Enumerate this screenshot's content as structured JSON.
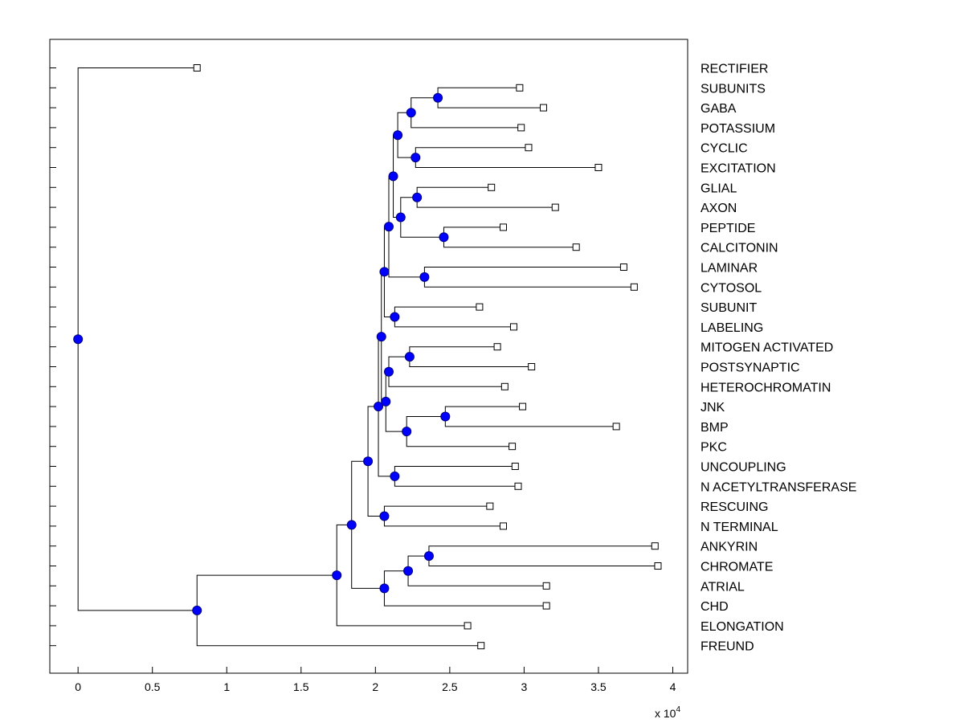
{
  "chart_data": {
    "type": "dendrogram",
    "title": "",
    "xlabel": "",
    "ylabel": "",
    "x_scale_label": "x 10",
    "x_scale_exponent": "4",
    "xlim": [
      -0.19,
      4.1
    ],
    "x_ticks": [
      0,
      0.5,
      1,
      1.5,
      2,
      2.5,
      3,
      3.5,
      4
    ],
    "x_tick_labels": [
      "0",
      "0.5",
      "1",
      "1.5",
      "2",
      "2.5",
      "3",
      "3.5",
      "4"
    ],
    "leaves": [
      {
        "label": "RECTIFIER",
        "x": 0.8
      },
      {
        "label": "SUBUNITS",
        "x": 2.97
      },
      {
        "label": "GABA",
        "x": 3.13
      },
      {
        "label": "POTASSIUM",
        "x": 2.98
      },
      {
        "label": "CYCLIC",
        "x": 3.03
      },
      {
        "label": "EXCITATION",
        "x": 3.5
      },
      {
        "label": "GLIAL",
        "x": 2.78
      },
      {
        "label": "AXON",
        "x": 3.21
      },
      {
        "label": "PEPTIDE",
        "x": 2.86
      },
      {
        "label": "CALCITONIN",
        "x": 3.35
      },
      {
        "label": "LAMINAR",
        "x": 3.67
      },
      {
        "label": "CYTOSOL",
        "x": 3.74
      },
      {
        "label": "SUBUNIT",
        "x": 2.7
      },
      {
        "label": "LABELING",
        "x": 2.93
      },
      {
        "label": "MITOGEN ACTIVATED",
        "x": 2.82
      },
      {
        "label": "POSTSYNAPTIC",
        "x": 3.05
      },
      {
        "label": "HETEROCHROMATIN",
        "x": 2.87
      },
      {
        "label": "JNK",
        "x": 2.99
      },
      {
        "label": "BMP",
        "x": 3.62
      },
      {
        "label": "PKC",
        "x": 2.92
      },
      {
        "label": "UNCOUPLING",
        "x": 2.94
      },
      {
        "label": "N ACETYLTRANSFERASE",
        "x": 2.96
      },
      {
        "label": "RESCUING",
        "x": 2.77
      },
      {
        "label": "N TERMINAL",
        "x": 2.86
      },
      {
        "label": "ANKYRIN",
        "x": 3.88
      },
      {
        "label": "CHROMATE",
        "x": 3.9
      },
      {
        "label": "ATRIAL",
        "x": 3.15
      },
      {
        "label": "CHD",
        "x": 3.15
      },
      {
        "label": "ELONGATION",
        "x": 2.62
      },
      {
        "label": "FREUND",
        "x": 2.71
      }
    ],
    "nodes": [
      {
        "id": "n1",
        "x": 2.42,
        "children": [
          1,
          2
        ]
      },
      {
        "id": "n2",
        "x": 2.24,
        "children": [
          "n1",
          3
        ]
      },
      {
        "id": "n3",
        "x": 2.27,
        "children": [
          4,
          5
        ]
      },
      {
        "id": "n4",
        "x": 2.15,
        "children": [
          "n2",
          "n3"
        ]
      },
      {
        "id": "n5",
        "x": 2.28,
        "children": [
          6,
          7
        ]
      },
      {
        "id": "n6",
        "x": 2.46,
        "children": [
          8,
          9
        ]
      },
      {
        "id": "n7",
        "x": 2.17,
        "children": [
          "n5",
          "n6"
        ]
      },
      {
        "id": "n8",
        "x": 2.12,
        "children": [
          "n4",
          "n7"
        ]
      },
      {
        "id": "n9",
        "x": 2.33,
        "children": [
          10,
          11
        ]
      },
      {
        "id": "n10",
        "x": 2.09,
        "children": [
          "n8",
          "n9"
        ]
      },
      {
        "id": "n11",
        "x": 2.13,
        "children": [
          12,
          13
        ]
      },
      {
        "id": "n12",
        "x": 2.06,
        "children": [
          "n10",
          "n11"
        ]
      },
      {
        "id": "n13",
        "x": 2.23,
        "children": [
          14,
          15
        ]
      },
      {
        "id": "n14",
        "x": 2.09,
        "children": [
          "n13",
          16
        ]
      },
      {
        "id": "n15",
        "x": 2.47,
        "children": [
          17,
          18
        ]
      },
      {
        "id": "n16",
        "x": 2.21,
        "children": [
          "n15",
          19
        ]
      },
      {
        "id": "n17",
        "x": 2.07,
        "children": [
          "n14",
          "n16"
        ]
      },
      {
        "id": "n18",
        "x": 2.04,
        "children": [
          "n12",
          "n17"
        ]
      },
      {
        "id": "n19",
        "x": 2.13,
        "children": [
          20,
          21
        ]
      },
      {
        "id": "n20",
        "x": 2.02,
        "children": [
          "n18",
          "n19"
        ]
      },
      {
        "id": "n21",
        "x": 2.06,
        "children": [
          22,
          23
        ]
      },
      {
        "id": "n22",
        "x": 1.95,
        "children": [
          "n20",
          "n21"
        ]
      },
      {
        "id": "n23",
        "x": 2.36,
        "children": [
          24,
          25
        ]
      },
      {
        "id": "n24",
        "x": 2.22,
        "children": [
          "n23",
          26
        ]
      },
      {
        "id": "n25",
        "x": 2.06,
        "children": [
          "n24",
          27
        ]
      },
      {
        "id": "n26",
        "x": 1.84,
        "children": [
          "n22",
          "n25"
        ]
      },
      {
        "id": "n27",
        "x": 1.74,
        "children": [
          "n26",
          28
        ]
      },
      {
        "id": "n28",
        "x": 0.8,
        "children": [
          "n27",
          29
        ]
      },
      {
        "id": "n29",
        "x": 0.0,
        "children": [
          0,
          "n28"
        ]
      }
    ]
  },
  "colors": {
    "node_fill": "#0000ff",
    "node_stroke": "#000080",
    "line": "#000000",
    "leaf_fill": "#ffffff"
  }
}
